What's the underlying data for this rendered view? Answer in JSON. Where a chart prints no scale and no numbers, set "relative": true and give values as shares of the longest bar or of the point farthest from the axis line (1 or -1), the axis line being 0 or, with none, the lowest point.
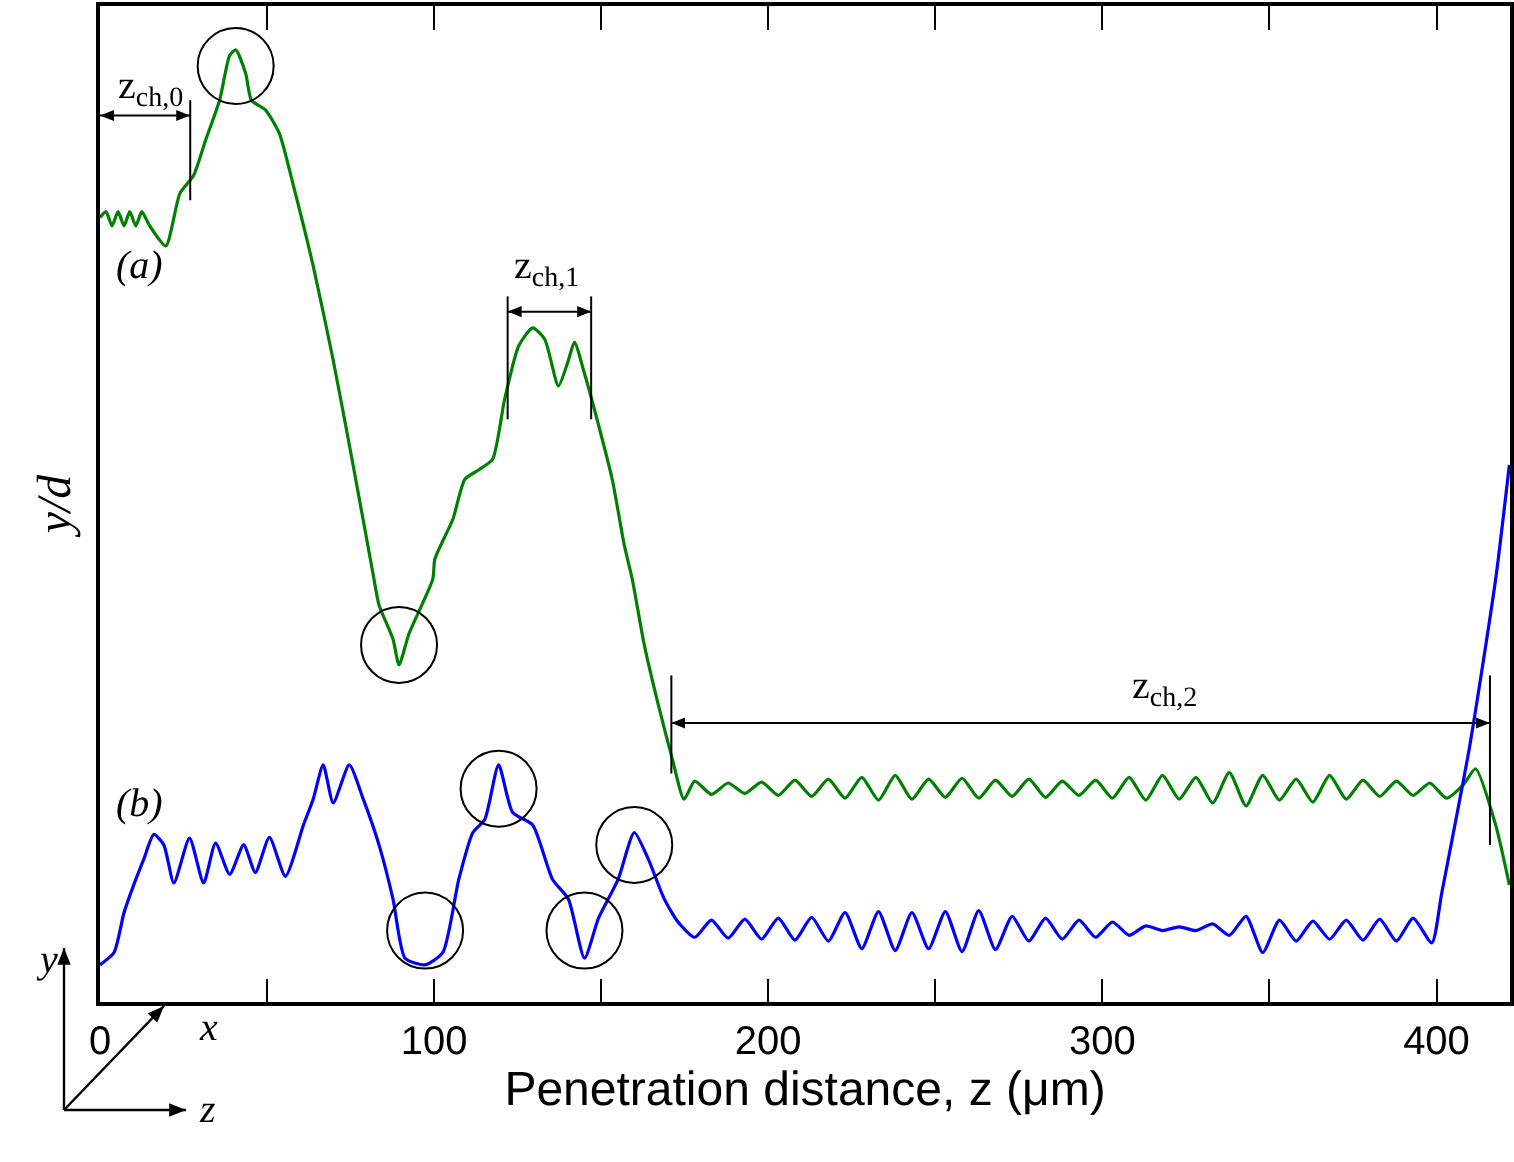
{
  "chart_data": {
    "type": "line",
    "xlabel": "Penetration distance, z (μm)",
    "ylabel": "y/d",
    "relative": true,
    "xlim": [
      0,
      422
    ],
    "xticks": [
      0,
      {
        "value": 50,
        "label": null
      },
      100,
      {
        "value": 150,
        "label": null
      },
      200,
      {
        "value": 250,
        "label": null
      },
      300,
      {
        "value": 350,
        "label": null
      },
      400
    ],
    "annotations": [
      "z$_{ch,0}$",
      "z$_{ch,1}$",
      "z$_{ch,2}$",
      "(a)",
      "(b)",
      "y",
      "x",
      "z"
    ],
    "series": [
      {
        "color": "#008000",
        "x": [
          0,
          1.8,
          3.6,
          5.4,
          7.2,
          8.9,
          10.7,
          12.5,
          14.9,
          19.7,
          23.9,
          28.0,
          31.6,
          35.8,
          38.8,
          40.6,
          43.6,
          45.3,
          49.5,
          53.7,
          57.9,
          63.8,
          69.8,
          75.8,
          81.7,
          83.5,
          87.7,
          89.5,
          92.5,
          99.6,
          100.2,
          105.6,
          109.2,
          113.4,
          117.5,
          121.1,
          125.3,
          129.5,
          133.1,
          137.2,
          140.2,
          142.0,
          145.0,
          149.2,
          153.3,
          156.9,
          159.3,
          162.9,
          167.1,
          171.3,
          174.8,
          178,
          183,
          188,
          193,
          198,
          203,
          208,
          213,
          218,
          223,
          228,
          233,
          238,
          243,
          248,
          253,
          258,
          263,
          268,
          273,
          278,
          283,
          288,
          293,
          298,
          303,
          308,
          313,
          318,
          323,
          328,
          333,
          338,
          343,
          348,
          353,
          358,
          363,
          368,
          373,
          378,
          383,
          388,
          393,
          398,
          403,
          408,
          411.7,
          417.7,
          421.8
        ],
        "values": [
          0.824,
          0.83,
          0.815,
          0.83,
          0.815,
          0.83,
          0.815,
          0.83,
          0.815,
          0.794,
          0.849,
          0.868,
          0.905,
          0.947,
          0.994,
          1.0,
          0.975,
          0.947,
          0.937,
          0.912,
          0.857,
          0.773,
          0.674,
          0.563,
          0.45,
          0.417,
          0.381,
          0.354,
          0.387,
          0.444,
          0.465,
          0.507,
          0.549,
          0.559,
          0.57,
          0.633,
          0.689,
          0.708,
          0.696,
          0.647,
          0.674,
          0.693,
          0.66,
          0.606,
          0.549,
          0.48,
          0.444,
          0.375,
          0.312,
          0.255,
          0.213,
          0.232,
          0.218,
          0.23,
          0.219,
          0.231,
          0.217,
          0.233,
          0.216,
          0.234,
          0.214,
          0.236,
          0.212,
          0.238,
          0.213,
          0.234,
          0.215,
          0.235,
          0.214,
          0.233,
          0.216,
          0.234,
          0.215,
          0.232,
          0.217,
          0.233,
          0.214,
          0.236,
          0.212,
          0.238,
          0.213,
          0.236,
          0.209,
          0.241,
          0.206,
          0.238,
          0.212,
          0.234,
          0.21,
          0.238,
          0.213,
          0.233,
          0.216,
          0.232,
          0.217,
          0.23,
          0.214,
          0.228,
          0.245,
          0.186,
          0.123
        ]
      },
      {
        "color": "#0000ff",
        "x": [
          0,
          4.2,
          7.2,
          10.1,
          13.1,
          16.1,
          19.1,
          22.1,
          26.8,
          31.0,
          34.6,
          38.8,
          43.0,
          46.5,
          50.7,
          55.5,
          60.9,
          63.8,
          66.8,
          69.8,
          74.6,
          78.8,
          83.5,
          87.7,
          91.3,
          97.3,
          102.6,
          107.4,
          111.6,
          115.2,
          119.3,
          123.5,
          129.5,
          135.4,
          140.2,
          145.0,
          149.2,
          155.1,
          159.9,
          164.1,
          168.9,
          173,
          178,
          183,
          188,
          193,
          198,
          203,
          208,
          213,
          218,
          223,
          228,
          233,
          238,
          243,
          248,
          253,
          258,
          263,
          268,
          273,
          278,
          283,
          288,
          293,
          298,
          303,
          308,
          313,
          318,
          323,
          328,
          333,
          338,
          343,
          348,
          353,
          358,
          363,
          368,
          373,
          378,
          383,
          388,
          393,
          398.6,
          401.6,
          410,
          417.7,
          421.8
        ],
        "values": [
          0.039,
          0.052,
          0.094,
          0.123,
          0.15,
          0.176,
          0.165,
          0.125,
          0.172,
          0.125,
          0.167,
          0.134,
          0.165,
          0.136,
          0.173,
          0.132,
          0.186,
          0.213,
          0.249,
          0.209,
          0.249,
          0.213,
          0.165,
          0.108,
          0.046,
          0.039,
          0.052,
          0.129,
          0.178,
          0.192,
          0.249,
          0.199,
          0.186,
          0.129,
          0.108,
          0.046,
          0.088,
          0.129,
          0.178,
          0.15,
          0.108,
          0.084,
          0.068,
          0.086,
          0.067,
          0.087,
          0.066,
          0.088,
          0.065,
          0.089,
          0.064,
          0.094,
          0.056,
          0.095,
          0.054,
          0.094,
          0.056,
          0.095,
          0.053,
          0.096,
          0.055,
          0.09,
          0.064,
          0.088,
          0.066,
          0.086,
          0.068,
          0.084,
          0.07,
          0.08,
          0.075,
          0.079,
          0.075,
          0.082,
          0.07,
          0.09,
          0.052,
          0.086,
          0.064,
          0.085,
          0.066,
          0.086,
          0.065,
          0.087,
          0.064,
          0.088,
          0.062,
          0.115,
          0.27,
          0.444,
          0.564
        ]
      }
    ]
  }
}
